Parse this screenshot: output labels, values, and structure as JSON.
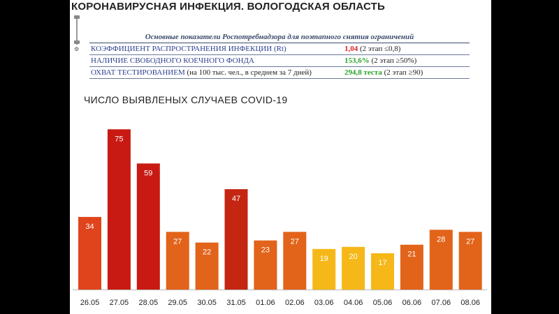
{
  "slide": {
    "title": "КОРОНАВИРУСНАЯ ИНФЕКЦИЯ. ВОЛОГОДСКАЯ ОБЛАСТЬ",
    "scroll_icon": "scroll-handle-icon"
  },
  "indicators": {
    "header": "Основные показатели Роспотребнадзора для поэтапного снятия ограничений",
    "rows": [
      {
        "label": "КОЭФФИЦИЕНТ РАСПРОСТРАНЕНИЯ ИНФЕКЦИИ (Rt)",
        "note": "",
        "value": "1,04",
        "value_color": "#e02020",
        "threshold": "(2 этап ≤0,8)"
      },
      {
        "label": "НАЛИЧИЕ СВОБОДНОГО КОЕЧНОГО ФОНДА",
        "note": "",
        "value": "153,6%",
        "value_color": "#2aa52a",
        "threshold": "(2 этап ≥50%)"
      },
      {
        "label": "ОХВАТ ТЕСТИРОВАНИЕМ",
        "note": "(на 100 тыс. чел., в среднем за 7 дней)",
        "value": "294,8 теста",
        "value_color": "#2aa52a",
        "threshold": "(2  этап ≥90)"
      }
    ]
  },
  "chart_data": {
    "type": "bar",
    "title": "ЧИСЛО ВЫЯВЛЕНЫХ СЛУЧАЕВ COVID-19",
    "categories": [
      "26.05",
      "27.05",
      "28.05",
      "29.05",
      "30.05",
      "31.05",
      "01.06",
      "02.06",
      "03.06",
      "04.06",
      "05.06",
      "06.06",
      "07.06",
      "08.06"
    ],
    "values": [
      34,
      75,
      59,
      27,
      22,
      47,
      23,
      27,
      19,
      20,
      17,
      21,
      28,
      27
    ],
    "colors": [
      "#e0441c",
      "#c81a12",
      "#c81a12",
      "#e2631a",
      "#e2631a",
      "#c42612",
      "#e2631a",
      "#e2631a",
      "#f6b818",
      "#f6b818",
      "#f6b818",
      "#e2631a",
      "#e2631a",
      "#e2631a"
    ],
    "ylim": [
      0,
      80
    ],
    "grid": false,
    "data_labels": true
  }
}
